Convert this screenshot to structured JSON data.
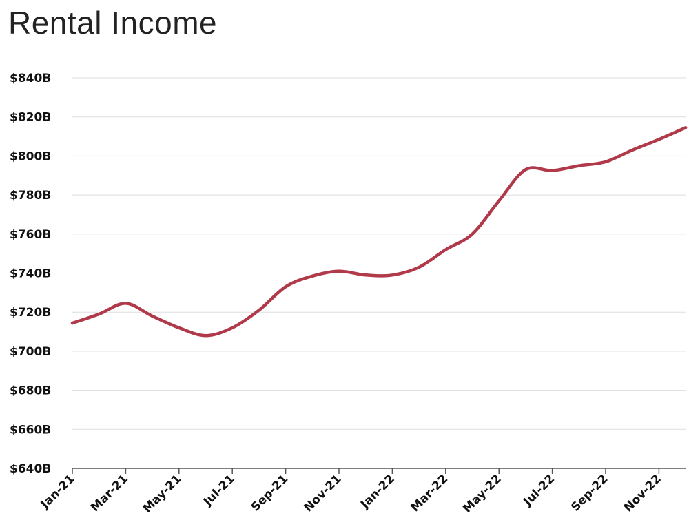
{
  "chart_data": {
    "type": "line",
    "title": "Rental Income",
    "xlabel": "",
    "ylabel": "",
    "x_tick_labels": [
      "Jan-21",
      "Mar-21",
      "May-21",
      "Jul-21",
      "Sep-21",
      "Nov-21",
      "Jan-22",
      "Mar-22",
      "May-22",
      "Jul-22",
      "Sep-22",
      "Nov-22"
    ],
    "y_tick_labels": [
      "$640B",
      "$660B",
      "$680B",
      "$700B",
      "$720B",
      "$740B",
      "$760B",
      "$780B",
      "$800B",
      "$820B",
      "$840B"
    ],
    "ylim": [
      640,
      840
    ],
    "y_unit": "$B",
    "grid": true,
    "legend": "none",
    "series": [
      {
        "color": "#b03a4a",
        "x": [
          "Jan-21",
          "Feb-21",
          "Mar-21",
          "Apr-21",
          "May-21",
          "Jun-21",
          "Jul-21",
          "Aug-21",
          "Sep-21",
          "Oct-21",
          "Nov-21",
          "Dec-21",
          "Jan-22",
          "Feb-22",
          "Mar-22",
          "Apr-22",
          "May-22",
          "Jun-22",
          "Jul-22",
          "Aug-22",
          "Sep-22",
          "Oct-22",
          "Nov-22",
          "Dec-22"
        ],
        "values": [
          714.4,
          719.0,
          724.5,
          718.0,
          712.0,
          708.0,
          712.0,
          721.0,
          733.0,
          738.5,
          741.0,
          739.0,
          739.0,
          743.0,
          752.0,
          760.0,
          777.0,
          793.0,
          792.5,
          795.0,
          797.0,
          803.0,
          808.5,
          814.5
        ]
      }
    ]
  }
}
